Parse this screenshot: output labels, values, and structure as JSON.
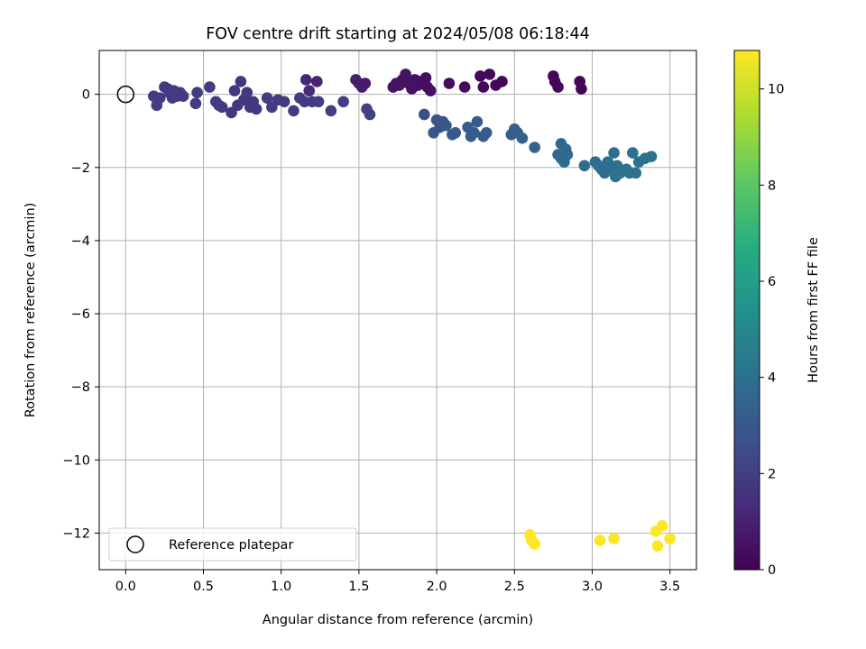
{
  "chart_data": {
    "type": "scatter",
    "title": "FOV centre drift starting at 2024/05/08 06:18:44",
    "xlabel": "Angular distance from reference (arcmin)",
    "ylabel": "Rotation from reference (arcmin)",
    "xlim": [
      -0.17,
      3.67
    ],
    "ylim": [
      -13.0,
      1.2
    ],
    "xticks": [
      0.0,
      0.5,
      1.0,
      1.5,
      2.0,
      2.5,
      3.0,
      3.5
    ],
    "xtick_labels": [
      "0.0",
      "0.5",
      "1.0",
      "1.5",
      "2.0",
      "2.5",
      "3.0",
      "3.5"
    ],
    "yticks": [
      0,
      -2,
      -4,
      -6,
      -8,
      -10,
      -12
    ],
    "ytick_labels": [
      "0",
      "−2",
      "−4",
      "−6",
      "−8",
      "−10",
      "−12"
    ],
    "grid": true,
    "colormap": "viridis",
    "colorbar": {
      "label": "Hours from first FF file",
      "range": [
        0,
        10.8
      ],
      "ticks": [
        0,
        2,
        4,
        6,
        8,
        10
      ],
      "tick_labels": [
        "0",
        "2",
        "4",
        "6",
        "8",
        "10"
      ]
    },
    "legend": {
      "placement": "lower-left",
      "entries": [
        "Reference platepar"
      ]
    },
    "reference_point": {
      "x": 0.0,
      "y": 0.0
    },
    "points": [
      {
        "x": 0.18,
        "y": -0.05,
        "c": 1.9
      },
      {
        "x": 0.2,
        "y": -0.3,
        "c": 1.9
      },
      {
        "x": 0.22,
        "y": -0.1,
        "c": 1.9
      },
      {
        "x": 0.25,
        "y": 0.2,
        "c": 1.9
      },
      {
        "x": 0.27,
        "y": 0.15,
        "c": 1.8
      },
      {
        "x": 0.28,
        "y": 0.05,
        "c": 1.9
      },
      {
        "x": 0.3,
        "y": -0.1,
        "c": 1.9
      },
      {
        "x": 0.31,
        "y": 0.1,
        "c": 1.9
      },
      {
        "x": 0.33,
        "y": -0.05,
        "c": 1.9
      },
      {
        "x": 0.35,
        "y": 0.05,
        "c": 1.9
      },
      {
        "x": 0.37,
        "y": -0.05,
        "c": 1.9
      },
      {
        "x": 0.45,
        "y": -0.25,
        "c": 1.9
      },
      {
        "x": 0.46,
        "y": 0.05,
        "c": 1.9
      },
      {
        "x": 0.54,
        "y": 0.2,
        "c": 1.9
      },
      {
        "x": 0.58,
        "y": -0.2,
        "c": 1.9
      },
      {
        "x": 0.6,
        "y": -0.3,
        "c": 1.9
      },
      {
        "x": 0.62,
        "y": -0.35,
        "c": 1.9
      },
      {
        "x": 0.68,
        "y": -0.5,
        "c": 1.8
      },
      {
        "x": 0.7,
        "y": 0.1,
        "c": 1.8
      },
      {
        "x": 0.72,
        "y": -0.3,
        "c": 1.8
      },
      {
        "x": 0.74,
        "y": 0.35,
        "c": 1.7
      },
      {
        "x": 0.76,
        "y": -0.15,
        "c": 1.8
      },
      {
        "x": 0.78,
        "y": 0.05,
        "c": 1.8
      },
      {
        "x": 0.8,
        "y": -0.35,
        "c": 1.8
      },
      {
        "x": 0.82,
        "y": -0.2,
        "c": 1.8
      },
      {
        "x": 0.84,
        "y": -0.4,
        "c": 1.8
      },
      {
        "x": 0.91,
        "y": -0.1,
        "c": 1.9
      },
      {
        "x": 0.94,
        "y": -0.35,
        "c": 1.9
      },
      {
        "x": 0.98,
        "y": -0.15,
        "c": 1.9
      },
      {
        "x": 1.02,
        "y": -0.2,
        "c": 1.9
      },
      {
        "x": 1.08,
        "y": -0.45,
        "c": 1.9
      },
      {
        "x": 1.12,
        "y": -0.1,
        "c": 1.9
      },
      {
        "x": 1.15,
        "y": -0.2,
        "c": 1.9
      },
      {
        "x": 1.16,
        "y": 0.4,
        "c": 1.2
      },
      {
        "x": 1.18,
        "y": 0.1,
        "c": 1.3
      },
      {
        "x": 1.2,
        "y": -0.2,
        "c": 1.9
      },
      {
        "x": 1.23,
        "y": 0.35,
        "c": 1.1
      },
      {
        "x": 1.24,
        "y": -0.2,
        "c": 1.9
      },
      {
        "x": 1.32,
        "y": -0.45,
        "c": 2.0
      },
      {
        "x": 1.4,
        "y": -0.2,
        "c": 2.0
      },
      {
        "x": 1.48,
        "y": 0.4,
        "c": 0.9
      },
      {
        "x": 1.5,
        "y": 0.3,
        "c": 0.9
      },
      {
        "x": 1.52,
        "y": 0.2,
        "c": 0.9
      },
      {
        "x": 1.54,
        "y": 0.3,
        "c": 0.8
      },
      {
        "x": 1.55,
        "y": -0.4,
        "c": 2.1
      },
      {
        "x": 1.57,
        "y": -0.55,
        "c": 2.1
      },
      {
        "x": 1.72,
        "y": 0.2,
        "c": 0.6
      },
      {
        "x": 1.74,
        "y": 0.3,
        "c": 0.6
      },
      {
        "x": 1.76,
        "y": 0.25,
        "c": 0.6
      },
      {
        "x": 1.78,
        "y": 0.4,
        "c": 0.5
      },
      {
        "x": 1.8,
        "y": 0.55,
        "c": 0.6
      },
      {
        "x": 1.82,
        "y": 0.3,
        "c": 0.5
      },
      {
        "x": 1.84,
        "y": 0.15,
        "c": 0.5
      },
      {
        "x": 1.86,
        "y": 0.4,
        "c": 0.5
      },
      {
        "x": 1.88,
        "y": 0.25,
        "c": 0.5
      },
      {
        "x": 1.9,
        "y": 0.35,
        "c": 0.5
      },
      {
        "x": 1.92,
        "y": -0.55,
        "c": 2.6
      },
      {
        "x": 1.93,
        "y": 0.45,
        "c": 0.4
      },
      {
        "x": 1.94,
        "y": 0.2,
        "c": 0.4
      },
      {
        "x": 1.96,
        "y": 0.1,
        "c": 0.4
      },
      {
        "x": 1.98,
        "y": -1.05,
        "c": 2.9
      },
      {
        "x": 2.0,
        "y": -0.7,
        "c": 2.8
      },
      {
        "x": 2.02,
        "y": -0.9,
        "c": 2.8
      },
      {
        "x": 2.04,
        "y": -0.75,
        "c": 2.9
      },
      {
        "x": 2.06,
        "y": -0.85,
        "c": 2.9
      },
      {
        "x": 2.08,
        "y": 0.3,
        "c": 0.3
      },
      {
        "x": 2.1,
        "y": -1.1,
        "c": 3.0
      },
      {
        "x": 2.12,
        "y": -1.05,
        "c": 3.0
      },
      {
        "x": 2.18,
        "y": 0.2,
        "c": 0.3
      },
      {
        "x": 2.2,
        "y": -0.9,
        "c": 3.1
      },
      {
        "x": 2.22,
        "y": -1.15,
        "c": 3.1
      },
      {
        "x": 2.24,
        "y": -1.05,
        "c": 3.1
      },
      {
        "x": 2.26,
        "y": -0.75,
        "c": 3.1
      },
      {
        "x": 2.28,
        "y": 0.5,
        "c": 0.2
      },
      {
        "x": 2.3,
        "y": 0.2,
        "c": 0.2
      },
      {
        "x": 2.3,
        "y": -1.15,
        "c": 3.1
      },
      {
        "x": 2.32,
        "y": -1.05,
        "c": 3.1
      },
      {
        "x": 2.34,
        "y": 0.55,
        "c": 0.2
      },
      {
        "x": 2.38,
        "y": 0.25,
        "c": 0.2
      },
      {
        "x": 2.42,
        "y": 0.35,
        "c": 0.2
      },
      {
        "x": 2.48,
        "y": -1.1,
        "c": 3.2
      },
      {
        "x": 2.5,
        "y": -0.95,
        "c": 3.2
      },
      {
        "x": 2.52,
        "y": -1.05,
        "c": 3.2
      },
      {
        "x": 2.55,
        "y": -1.2,
        "c": 3.3
      },
      {
        "x": 2.63,
        "y": -1.45,
        "c": 3.4
      },
      {
        "x": 2.75,
        "y": 0.5,
        "c": 0.15
      },
      {
        "x": 2.76,
        "y": 0.35,
        "c": 0.15
      },
      {
        "x": 2.78,
        "y": -1.65,
        "c": 3.6
      },
      {
        "x": 2.78,
        "y": 0.2,
        "c": 0.2
      },
      {
        "x": 2.8,
        "y": -1.35,
        "c": 3.6
      },
      {
        "x": 2.8,
        "y": -1.75,
        "c": 3.7
      },
      {
        "x": 2.82,
        "y": -1.85,
        "c": 3.7
      },
      {
        "x": 2.83,
        "y": -1.5,
        "c": 3.7
      },
      {
        "x": 2.84,
        "y": -1.65,
        "c": 3.7
      },
      {
        "x": 2.92,
        "y": 0.35,
        "c": 0.1
      },
      {
        "x": 2.93,
        "y": 0.15,
        "c": 0.1
      },
      {
        "x": 2.95,
        "y": -1.95,
        "c": 3.8
      },
      {
        "x": 3.02,
        "y": -1.85,
        "c": 3.8
      },
      {
        "x": 3.04,
        "y": -1.95,
        "c": 3.9
      },
      {
        "x": 3.06,
        "y": -2.05,
        "c": 3.9
      },
      {
        "x": 3.08,
        "y": -2.15,
        "c": 3.9
      },
      {
        "x": 3.1,
        "y": -1.85,
        "c": 3.9
      },
      {
        "x": 3.12,
        "y": -2.05,
        "c": 3.9
      },
      {
        "x": 3.14,
        "y": -1.6,
        "c": 3.9
      },
      {
        "x": 3.15,
        "y": -2.25,
        "c": 4.0
      },
      {
        "x": 3.16,
        "y": -1.95,
        "c": 3.9
      },
      {
        "x": 3.18,
        "y": -2.15,
        "c": 4.0
      },
      {
        "x": 3.22,
        "y": -2.05,
        "c": 4.0
      },
      {
        "x": 3.24,
        "y": -2.15,
        "c": 4.0
      },
      {
        "x": 3.26,
        "y": -1.6,
        "c": 4.0
      },
      {
        "x": 3.28,
        "y": -2.15,
        "c": 4.0
      },
      {
        "x": 3.3,
        "y": -1.85,
        "c": 4.0
      },
      {
        "x": 3.34,
        "y": -1.75,
        "c": 4.0
      },
      {
        "x": 3.38,
        "y": -1.7,
        "c": 4.0
      },
      {
        "x": 2.6,
        "y": -12.05,
        "c": 10.8
      },
      {
        "x": 2.61,
        "y": -12.2,
        "c": 10.8
      },
      {
        "x": 2.63,
        "y": -12.3,
        "c": 10.8
      },
      {
        "x": 3.05,
        "y": -12.2,
        "c": 10.8
      },
      {
        "x": 3.14,
        "y": -12.15,
        "c": 10.8
      },
      {
        "x": 3.41,
        "y": -11.95,
        "c": 10.8
      },
      {
        "x": 3.42,
        "y": -12.35,
        "c": 10.8
      },
      {
        "x": 3.45,
        "y": -11.8,
        "c": 10.8
      },
      {
        "x": 3.5,
        "y": -12.15,
        "c": 10.8
      }
    ]
  }
}
